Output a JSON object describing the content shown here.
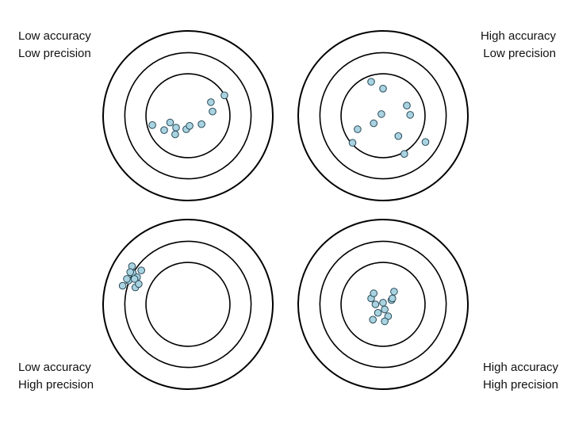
{
  "colors": {
    "ring_stroke": "#000000",
    "dot_fill": "#a9d3e1",
    "dot_stroke": "#2a4a58",
    "background": "#ffffff"
  },
  "panels": [
    {
      "id": "low-accuracy-low-precision",
      "line1": "Low accuracy",
      "line2": "Low precision",
      "shots": [
        [
          -0.15,
          -0.22
        ],
        [
          -0.02,
          -0.16
        ],
        [
          -0.14,
          -0.14
        ],
        [
          0.02,
          -0.12
        ],
        [
          -0.28,
          -0.17
        ],
        [
          -0.42,
          -0.11
        ],
        [
          -0.21,
          -0.08
        ],
        [
          0.16,
          -0.1
        ],
        [
          0.27,
          0.16
        ],
        [
          0.29,
          0.05
        ],
        [
          0.43,
          0.24
        ]
      ]
    },
    {
      "id": "high-accuracy-low-precision",
      "line1": "High accuracy",
      "line2": "Low precision",
      "shots": [
        [
          -0.14,
          0.4
        ],
        [
          0.0,
          0.32
        ],
        [
          0.28,
          0.12
        ],
        [
          -0.02,
          0.02
        ],
        [
          -0.3,
          -0.16
        ],
        [
          0.18,
          -0.24
        ],
        [
          -0.36,
          -0.32
        ],
        [
          0.25,
          -0.45
        ],
        [
          -0.11,
          -0.09
        ],
        [
          0.5,
          -0.31
        ],
        [
          0.32,
          0.01
        ]
      ]
    },
    {
      "id": "low-accuracy-high-precision",
      "line1": "Low accuracy",
      "line2": "High precision",
      "shots": [
        [
          -0.77,
          0.22
        ],
        [
          -0.7,
          0.28
        ],
        [
          -0.65,
          0.37
        ],
        [
          -0.66,
          0.45
        ],
        [
          -0.6,
          0.32
        ],
        [
          -0.55,
          0.4
        ],
        [
          -0.62,
          0.2
        ],
        [
          -0.68,
          0.38
        ],
        [
          -0.72,
          0.3
        ],
        [
          -0.58,
          0.24
        ],
        [
          -0.63,
          0.3
        ]
      ]
    },
    {
      "id": "high-accuracy-high-precision",
      "line1": "High accuracy",
      "line2": "High precision",
      "shots": [
        [
          -0.09,
          0.0
        ],
        [
          0.0,
          0.02
        ],
        [
          0.1,
          0.05
        ],
        [
          0.02,
          -0.06
        ],
        [
          -0.06,
          -0.1
        ],
        [
          0.06,
          -0.14
        ],
        [
          -0.12,
          -0.18
        ],
        [
          0.02,
          -0.2
        ],
        [
          -0.14,
          0.07
        ],
        [
          0.11,
          0.07
        ],
        [
          -0.11,
          0.13
        ],
        [
          0.13,
          0.15
        ]
      ]
    }
  ]
}
